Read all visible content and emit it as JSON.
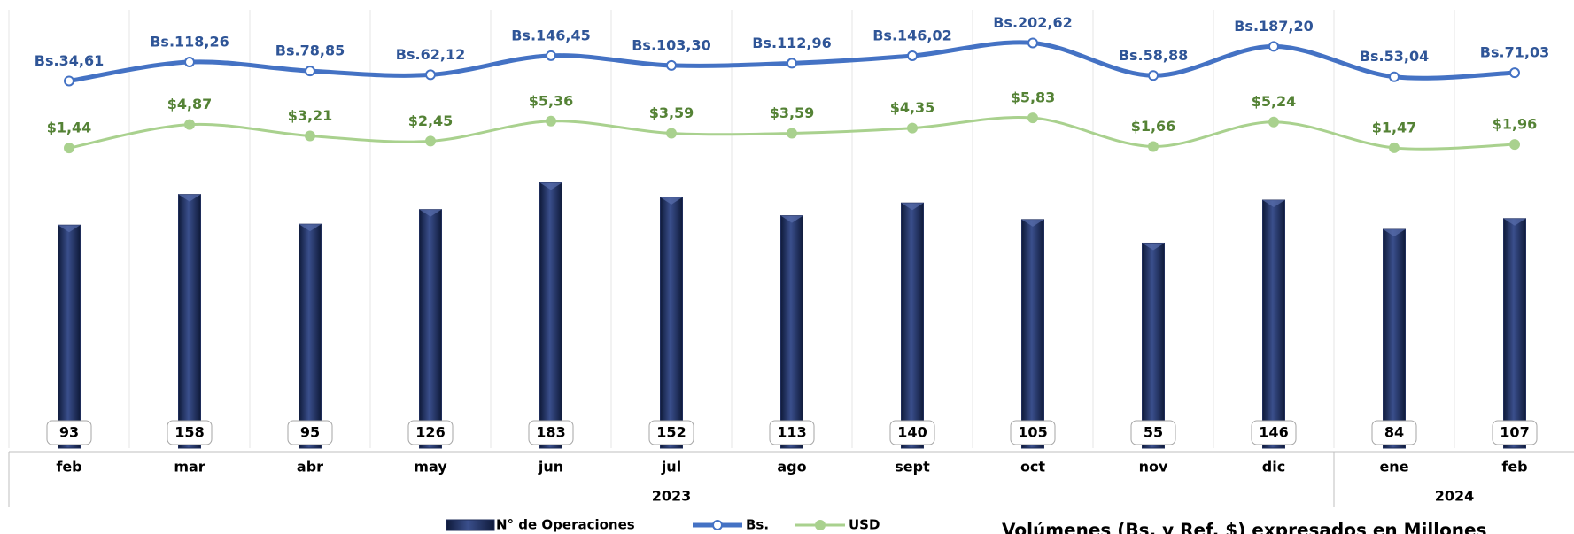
{
  "chart_data": {
    "type": "bar_line",
    "categories": [
      "feb",
      "mar",
      "abr",
      "may",
      "jun",
      "jul",
      "ago",
      "sept",
      "oct",
      "nov",
      "dic",
      "ene",
      "feb"
    ],
    "year_groups": [
      {
        "label": "2023",
        "span": 11
      },
      {
        "label": "2024",
        "span": 2
      }
    ],
    "series": [
      {
        "name": "N° de Operaciones",
        "type": "bar",
        "color": "#1f2d5a",
        "values": [
          93,
          158,
          95,
          126,
          183,
          152,
          113,
          140,
          105,
          55,
          146,
          84,
          107
        ],
        "ylim": [
          -380,
          550
        ]
      },
      {
        "name": "Bs.",
        "type": "line",
        "color": "#4472c4",
        "label_color": "#2f5597",
        "values": [
          34.61,
          118.26,
          78.85,
          62.12,
          146.45,
          103.3,
          112.96,
          146.02,
          202.62,
          58.88,
          187.2,
          53.04,
          71.03
        ],
        "value_labels": [
          "Bs.34,61",
          "Bs.118,26",
          "Bs.78,85",
          "Bs.62,12",
          "Bs.146,45",
          "Bs.103,30",
          "Bs.112,96",
          "Bs.146,02",
          "Bs.202,62",
          "Bs.58,88",
          "Bs.187,20",
          "Bs.53,04",
          "Bs.71,03"
        ],
        "ylim": [
          -1585,
          349
        ]
      },
      {
        "name": "USD",
        "type": "line",
        "color": "#a9d18e",
        "label_color": "#548235",
        "values": [
          1.44,
          4.87,
          3.21,
          2.45,
          5.36,
          3.59,
          3.59,
          4.35,
          5.83,
          1.66,
          5.24,
          1.47,
          1.96
        ],
        "value_labels": [
          "$1,44",
          "$4,87",
          "$3,21",
          "$2,45",
          "$5,36",
          "$3,59",
          "$3,59",
          "$4,35",
          "$5,83",
          "$1,66",
          "$5,24",
          "$1,47",
          "$1,96"
        ],
        "ylim": [
          -42.3,
          21.6
        ]
      }
    ],
    "note": "Volúmenes (Bs. y Ref. $) expresados en Millones"
  }
}
